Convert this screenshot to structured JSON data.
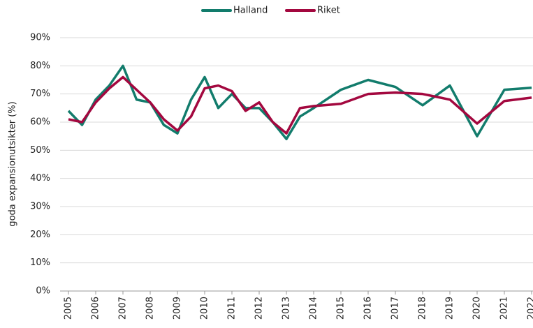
{
  "chart_data": {
    "type": "line",
    "y_label": "goda expansionutsikter (%)",
    "legend": "top",
    "grid": true,
    "x": [
      2005,
      2005.5,
      2006,
      2006.5,
      2007,
      2007.5,
      2008,
      2008.5,
      2009,
      2009.5,
      2010,
      2010.5,
      2011,
      2011.5,
      2012,
      2012.5,
      2013,
      2013.5,
      2014,
      2015,
      2016,
      2017,
      2018,
      2019,
      2020,
      2021,
      2022
    ],
    "series": [
      {
        "name": "Halland",
        "color": "#127c6c",
        "values": [
          64,
          59,
          68,
          73,
          80,
          68,
          67,
          59,
          56,
          68,
          76,
          65,
          70,
          65,
          65,
          60,
          54,
          62,
          65,
          71.5,
          75,
          72.5,
          66,
          73,
          55,
          71.5,
          72.2
        ]
      },
      {
        "name": "Riket",
        "color": "#a3083f",
        "values": [
          61,
          60,
          67,
          72,
          76,
          71.5,
          67,
          61,
          57,
          62,
          72,
          73,
          71,
          64,
          67,
          60,
          56,
          65,
          65.7,
          66.5,
          70,
          70.5,
          70,
          68,
          59.5,
          67.5,
          68.7
        ]
      }
    ],
    "xlim": [
      2005,
      2022
    ],
    "xticks": [
      2005,
      2006,
      2007,
      2008,
      2009,
      2010,
      2011,
      2012,
      2013,
      2014,
      2015,
      2016,
      2017,
      2018,
      2019,
      2020,
      2021,
      2022
    ],
    "ylim": [
      0,
      90
    ],
    "yticks": [
      {
        "value": 0,
        "label": "0%"
      },
      {
        "value": 10,
        "label": "10%"
      },
      {
        "value": 20,
        "label": "20%"
      },
      {
        "value": 30,
        "label": "30%"
      },
      {
        "value": 40,
        "label": "40%"
      },
      {
        "value": 50,
        "label": "50%"
      },
      {
        "value": 60,
        "label": "60%"
      },
      {
        "value": 70,
        "label": "70%"
      },
      {
        "value": 80,
        "label": "80%"
      },
      {
        "value": 90,
        "label": "90%"
      }
    ]
  }
}
